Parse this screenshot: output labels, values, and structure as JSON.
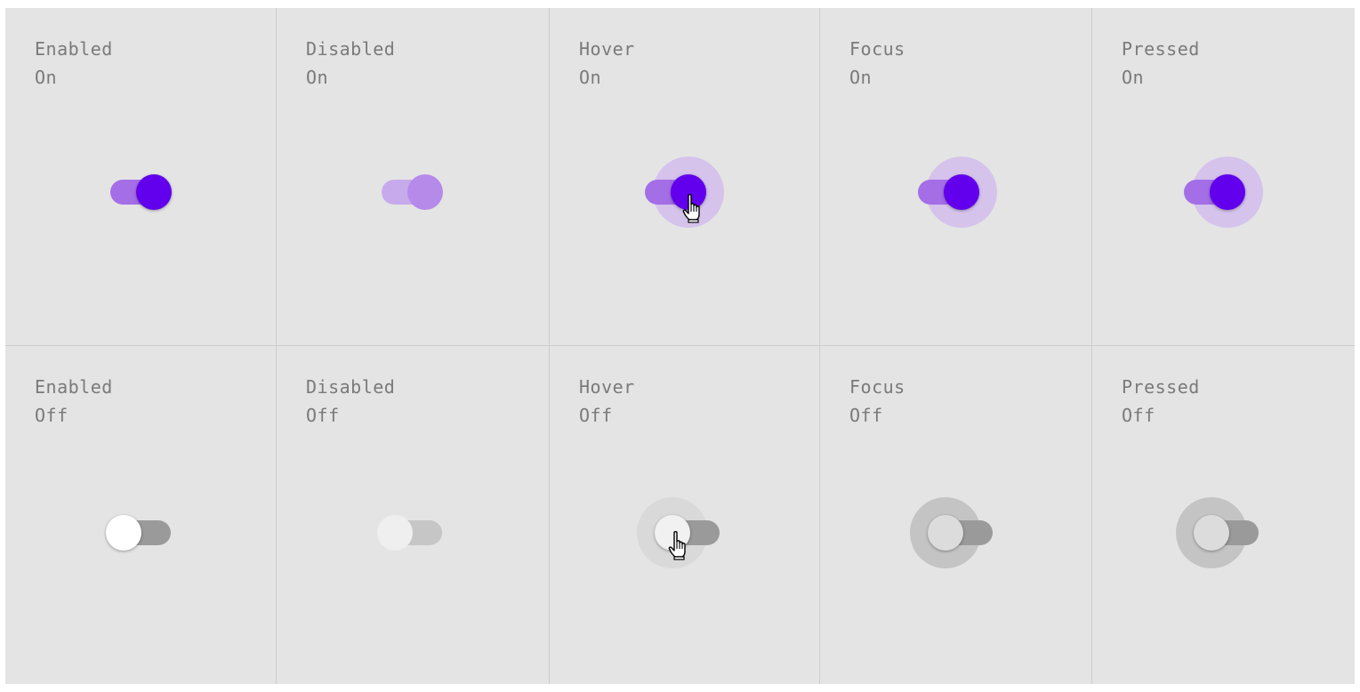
{
  "colors": {
    "board": "#e4e4e4",
    "divider": "#cdcdcd",
    "label_text": "#7a7a7a",
    "primary": "#6200ee",
    "primary_track": "#a46ee6",
    "primary_disabled": "#b68ae9",
    "primary_disabled_track": "#c7aaec",
    "primary_halo": "#d5c3ec",
    "off_thumb": "#ffffff",
    "off_track": "#9a9a9a"
  },
  "rows": [
    {
      "cells": [
        {
          "state": "Enabled",
          "value": "On"
        },
        {
          "state": "Disabled",
          "value": "On"
        },
        {
          "state": "Hover",
          "value": "On"
        },
        {
          "state": "Focus",
          "value": "On"
        },
        {
          "state": "Pressed",
          "value": "On"
        }
      ]
    },
    {
      "cells": [
        {
          "state": "Enabled",
          "value": "Off"
        },
        {
          "state": "Disabled",
          "value": "Off"
        },
        {
          "state": "Hover",
          "value": "Off"
        },
        {
          "state": "Focus",
          "value": "Off"
        },
        {
          "state": "Pressed",
          "value": "Off"
        }
      ]
    }
  ],
  "icons": {
    "cursor": "pointer-hand-cursor-icon"
  }
}
